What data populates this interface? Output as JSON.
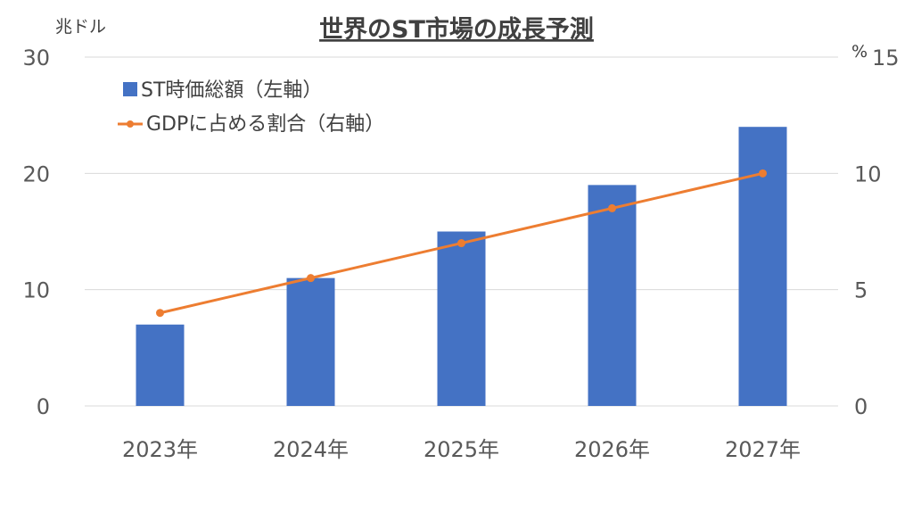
{
  "chart_data": {
    "type": "bar",
    "title": "世界のST市場の成長予測",
    "categories": [
      "2023年",
      "2024年",
      "2025年",
      "2026年",
      "2027年"
    ],
    "series": [
      {
        "name": "ST時価総額（左軸）",
        "type": "bar",
        "axis": "left",
        "color": "#4472c4",
        "values": [
          7,
          11,
          15,
          19,
          24
        ]
      },
      {
        "name": "GDPに占める割合（右軸）",
        "type": "line",
        "axis": "right",
        "color": "#ed7d31",
        "values": [
          4.0,
          5.5,
          7.0,
          8.5,
          10.0
        ]
      }
    ],
    "y_left": {
      "unit": "兆ドル",
      "ylim": [
        0,
        30
      ],
      "ticks": [
        "0",
        "10",
        "20",
        "30"
      ]
    },
    "y_right": {
      "unit": "%",
      "ylim": [
        0,
        15
      ],
      "ticks": [
        "0",
        "5",
        "10",
        "15"
      ]
    },
    "grid": true,
    "legend": "top-left"
  }
}
